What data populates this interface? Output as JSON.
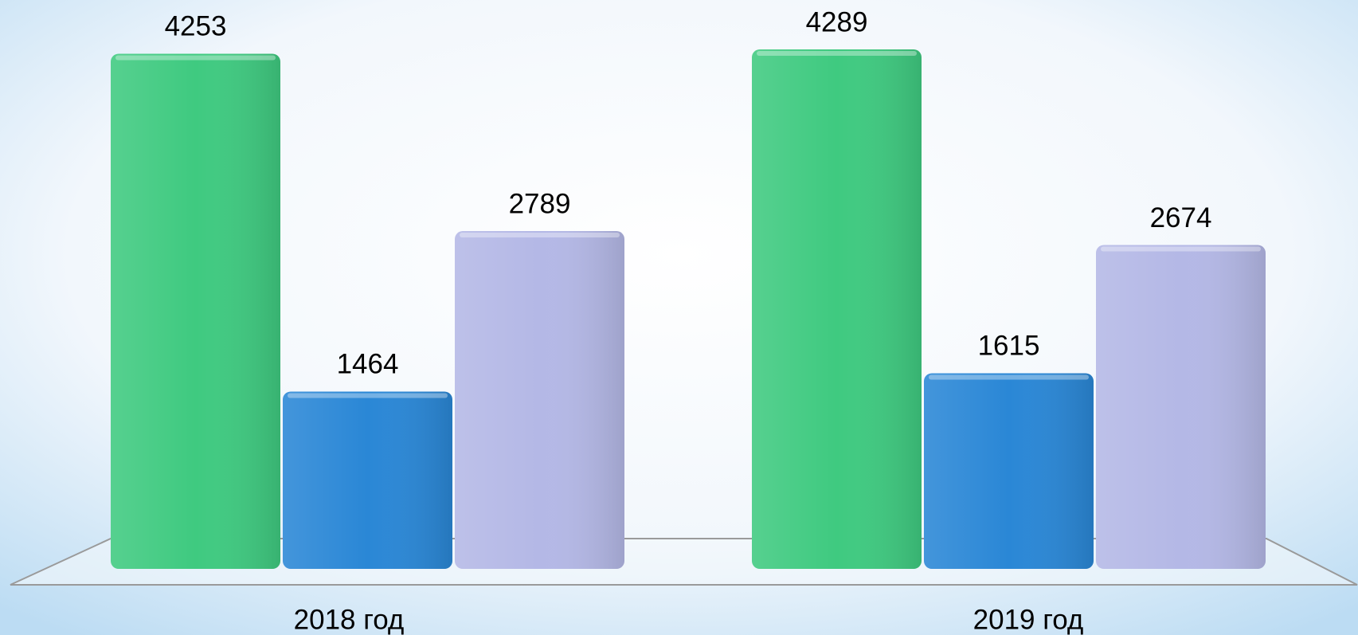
{
  "chart_data": {
    "type": "bar",
    "categories": [
      "2018 год",
      "2019 год"
    ],
    "series": [
      {
        "color": "#3fca80",
        "values": [
          4253,
          4289
        ]
      },
      {
        "color": "#2a87d6",
        "values": [
          1464,
          1615
        ]
      },
      {
        "color": "#b4b8e6",
        "values": [
          2789,
          2674
        ]
      }
    ]
  }
}
